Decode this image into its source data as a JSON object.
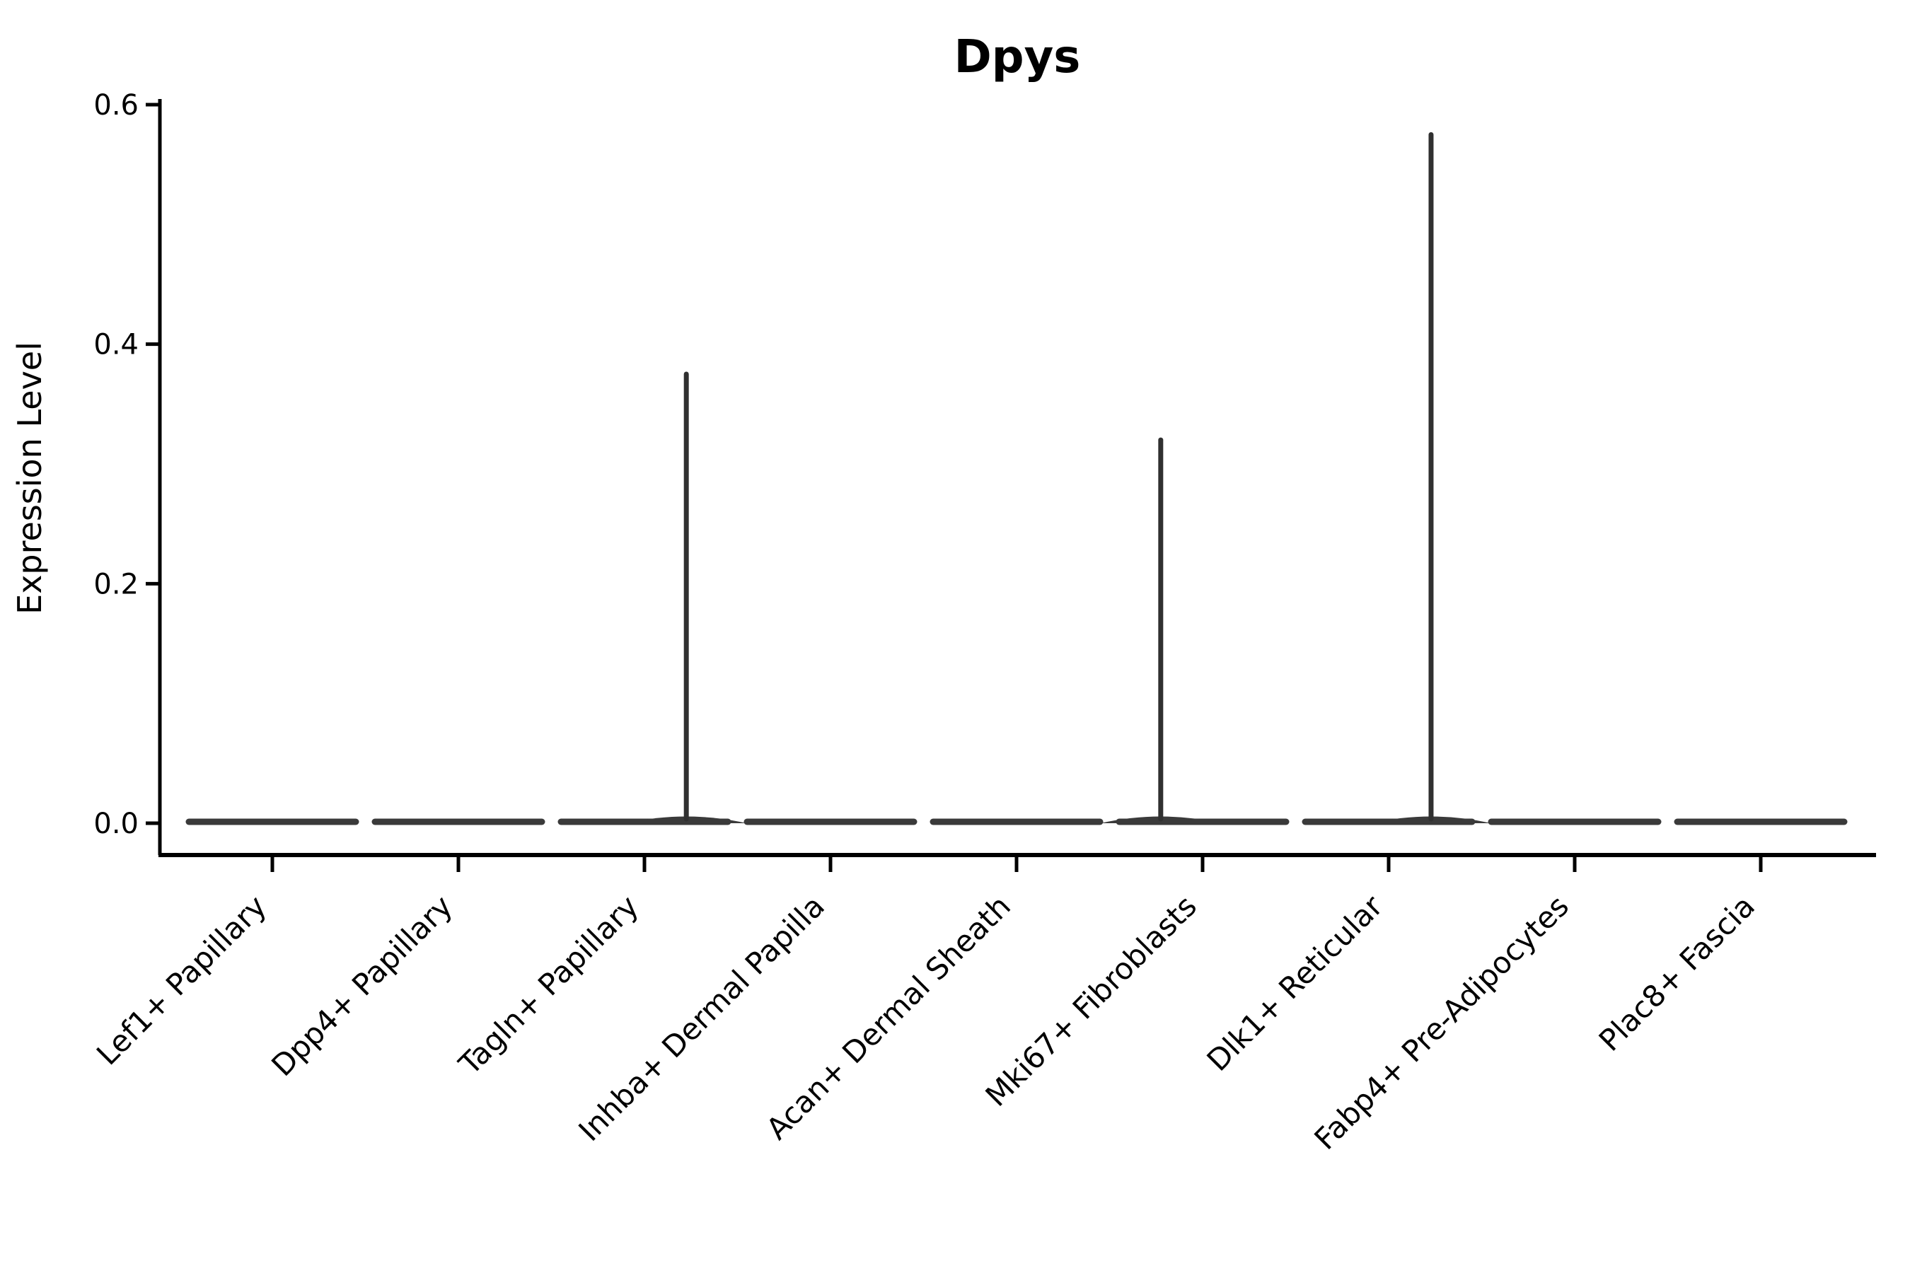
{
  "title": "Dpys",
  "chart_data": {
    "type": "violin",
    "title": "Dpys",
    "xlabel": "",
    "ylabel": "Expression Level",
    "ylim": [
      0,
      0.6
    ],
    "ytick_values": [
      0.0,
      0.2,
      0.4,
      0.6
    ],
    "ytick_labels": [
      "0.0",
      "0.2",
      "0.4",
      "0.6"
    ],
    "grid": false,
    "legend": "none",
    "categories": [
      "Lef1+ Papillary",
      "Dpp4+ Papillary",
      "Tagln+ Papillary",
      "Inhba+ Dermal Papilla",
      "Acan+ Dermal Sheath",
      "Mki67+ Fibroblasts",
      "Dlk1+ Reticular",
      "Fabp4+ Pre-Adipocytes",
      "Plac8+ Fascia"
    ],
    "violins": [
      {
        "category": "Lef1+ Papillary",
        "max_expression": 0,
        "has_spike": false,
        "spike_offset_frac": 0
      },
      {
        "category": "Dpp4+ Papillary",
        "max_expression": 0,
        "has_spike": false,
        "spike_offset_frac": 0
      },
      {
        "category": "Tagln+ Papillary",
        "max_expression": 0.375,
        "has_spike": true,
        "spike_offset_frac": 0.225
      },
      {
        "category": "Inhba+ Dermal Papilla",
        "max_expression": 0,
        "has_spike": false,
        "spike_offset_frac": 0
      },
      {
        "category": "Acan+ Dermal Sheath",
        "max_expression": 0,
        "has_spike": false,
        "spike_offset_frac": 0
      },
      {
        "category": "Mki67+ Fibroblasts",
        "max_expression": 0.32,
        "has_spike": true,
        "spike_offset_frac": -0.225
      },
      {
        "category": "Dlk1+ Reticular",
        "max_expression": 0.575,
        "has_spike": true,
        "spike_offset_frac": 0.228
      },
      {
        "category": "Fabp4+ Pre-Adipocytes",
        "max_expression": 0,
        "has_spike": false,
        "spike_offset_frac": 0
      },
      {
        "category": "Plac8+ Fascia",
        "max_expression": 0,
        "has_spike": false,
        "spike_offset_frac": 0
      }
    ],
    "baseline_bulk_value": 0.0
  },
  "colors": {
    "background": "#ffffff",
    "axis": "#000000",
    "text": "#000000",
    "violin_body": "#3a3a3a",
    "violin_spike": "#303030"
  }
}
